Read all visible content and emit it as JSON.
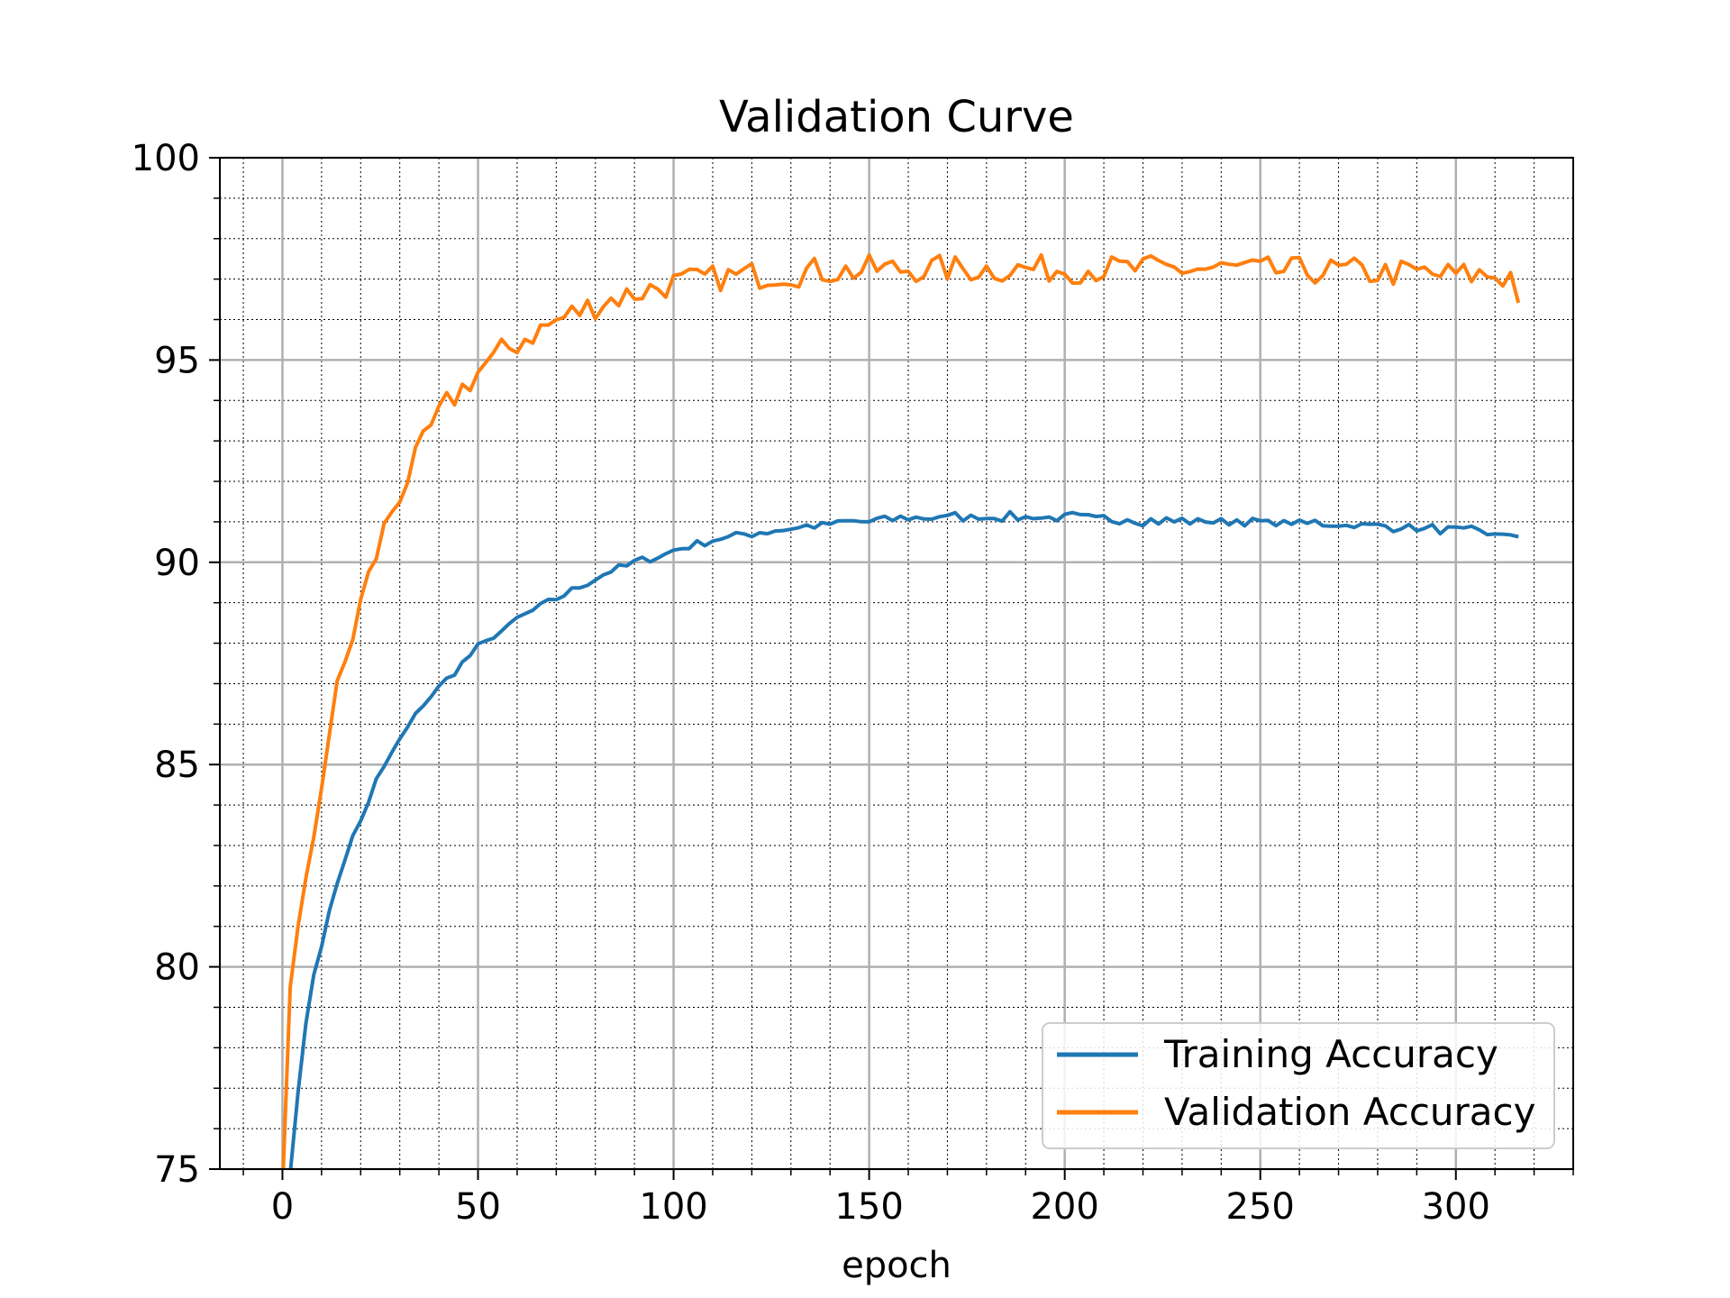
{
  "chart_data": {
    "type": "line",
    "title": "Validation Curve",
    "xlabel": "epoch",
    "ylabel": "",
    "xlim": [
      -16,
      330
    ],
    "ylim": [
      75,
      100
    ],
    "xticks": [
      0,
      50,
      100,
      150,
      200,
      250,
      300
    ],
    "yticks": [
      75,
      80,
      85,
      90,
      95,
      100
    ],
    "grid": true,
    "minor_grid": true,
    "legend_position": "lower-right",
    "series": [
      {
        "name": "Training Accuracy",
        "color": "#1f77b4",
        "x": [
          0,
          2,
          4,
          6,
          8,
          10,
          12,
          14,
          16,
          18,
          20,
          22,
          24,
          26,
          28,
          30,
          32,
          34,
          36,
          38,
          40,
          42,
          44,
          46,
          48,
          50,
          52,
          54,
          56,
          58,
          60,
          62,
          64,
          66,
          68,
          70,
          72,
          74,
          76,
          78,
          80,
          82,
          84,
          86,
          88,
          90,
          92,
          94,
          96,
          98,
          100,
          102,
          104,
          106,
          108,
          110,
          112,
          114,
          116,
          118,
          120,
          122,
          124,
          126,
          128,
          130,
          132,
          134,
          136,
          138,
          140,
          142,
          144,
          146,
          148,
          150,
          152,
          154,
          156,
          158,
          160,
          162,
          164,
          166,
          168,
          170,
          172,
          174,
          176,
          178,
          180,
          182,
          184,
          186,
          188,
          190,
          192,
          194,
          196,
          198,
          200,
          202,
          204,
          206,
          208,
          210,
          212,
          214,
          216,
          218,
          220,
          222,
          224,
          226,
          228,
          230,
          232,
          234,
          236,
          238,
          240,
          242,
          244,
          246,
          248,
          250,
          252,
          254,
          256,
          258,
          260,
          262,
          264,
          266,
          268,
          270,
          272,
          274,
          276,
          278,
          280,
          282,
          284,
          286,
          288,
          290,
          292,
          294,
          296,
          298,
          300,
          302,
          304,
          306,
          308,
          310,
          312,
          314,
          316
        ],
        "values": [
          72.0,
          74.9,
          76.9,
          78.6,
          79.8,
          80.6,
          81.3,
          82.1,
          82.7,
          83.2,
          83.6,
          84.1,
          84.6,
          84.9,
          85.3,
          85.6,
          85.9,
          86.2,
          86.5,
          86.7,
          86.9,
          87.1,
          87.3,
          87.5,
          87.7,
          87.9,
          88.0,
          88.2,
          88.3,
          88.4,
          88.6,
          88.7,
          88.8,
          88.9,
          89.0,
          89.1,
          89.2,
          89.3,
          89.4,
          89.5,
          89.6,
          89.7,
          89.8,
          89.85,
          89.9,
          90.0,
          90.05,
          90.1,
          90.15,
          90.2,
          90.3,
          90.35,
          90.4,
          90.45,
          90.5,
          90.55,
          90.6,
          90.6,
          90.65,
          90.7,
          90.7,
          90.75,
          90.75,
          90.8,
          90.8,
          90.85,
          90.85,
          90.9,
          90.9,
          90.9,
          90.95,
          90.95,
          91.0,
          91.0,
          91.0,
          91.0,
          91.05,
          91.05,
          91.05,
          91.1,
          91.1,
          91.1,
          91.1,
          91.1,
          91.15,
          91.1,
          91.15,
          91.1,
          91.1,
          91.15,
          91.1,
          91.15,
          91.1,
          91.15,
          91.1,
          91.1,
          91.15,
          91.1,
          91.1,
          91.1,
          91.1,
          91.15,
          91.1,
          91.1,
          91.05,
          91.1,
          91.05,
          91.05,
          91.1,
          91.05,
          91.0,
          91.05,
          91.0,
          91.05,
          91.0,
          91.05,
          91.0,
          91.0,
          91.05,
          91.0,
          91.0,
          91.0,
          91.05,
          91.0,
          91.0,
          91.0,
          90.95,
          91.0,
          90.95,
          91.0,
          90.95,
          90.95,
          91.0,
          90.95,
          90.95,
          90.95,
          90.9,
          90.95,
          90.9,
          90.9,
          90.9,
          90.9,
          90.85,
          90.9,
          90.85,
          90.85,
          90.8,
          90.85,
          90.8,
          90.8,
          90.8,
          90.75,
          90.8,
          90.75,
          90.7,
          90.75,
          90.65,
          90.6,
          90.65
        ],
        "noise": 0.1
      },
      {
        "name": "Validation Accuracy",
        "color": "#ff7f0e",
        "x": [
          0,
          2,
          4,
          6,
          8,
          10,
          12,
          14,
          16,
          18,
          20,
          22,
          24,
          26,
          28,
          30,
          32,
          34,
          36,
          38,
          40,
          42,
          44,
          46,
          48,
          50,
          52,
          54,
          56,
          58,
          60,
          62,
          64,
          66,
          68,
          70,
          72,
          74,
          76,
          78,
          80,
          82,
          84,
          86,
          88,
          90,
          92,
          94,
          96,
          98,
          100,
          102,
          104,
          106,
          108,
          110,
          112,
          114,
          116,
          118,
          120,
          122,
          124,
          126,
          128,
          130,
          132,
          134,
          136,
          138,
          140,
          142,
          144,
          146,
          148,
          150,
          152,
          154,
          156,
          158,
          160,
          162,
          164,
          166,
          168,
          170,
          172,
          174,
          176,
          178,
          180,
          182,
          184,
          186,
          188,
          190,
          192,
          194,
          196,
          198,
          200,
          202,
          204,
          206,
          208,
          210,
          212,
          214,
          216,
          218,
          220,
          222,
          224,
          226,
          228,
          230,
          232,
          234,
          236,
          238,
          240,
          242,
          244,
          246,
          248,
          250,
          252,
          254,
          256,
          258,
          260,
          262,
          264,
          266,
          268,
          270,
          272,
          274,
          276,
          278,
          280,
          282,
          284,
          286,
          288,
          290,
          292,
          294,
          296,
          298,
          300,
          302,
          304,
          306,
          308,
          310,
          312,
          314,
          316
        ],
        "values": [
          74.5,
          79.5,
          81.0,
          82.2,
          83.2,
          84.6,
          85.8,
          86.8,
          87.5,
          88.2,
          89.0,
          89.6,
          90.2,
          90.8,
          91.3,
          91.7,
          92.1,
          92.5,
          92.9,
          93.3,
          93.6,
          93.9,
          94.1,
          94.3,
          94.5,
          94.7,
          94.9,
          95.0,
          95.2,
          95.3,
          95.4,
          95.55,
          95.65,
          95.75,
          95.85,
          95.95,
          96.05,
          96.15,
          96.2,
          96.3,
          96.35,
          96.45,
          96.5,
          96.55,
          96.6,
          96.65,
          96.7,
          96.75,
          96.8,
          96.85,
          96.9,
          96.9,
          96.95,
          96.95,
          97.0,
          97.0,
          97.05,
          97.05,
          97.05,
          97.1,
          97.1,
          97.1,
          97.1,
          97.15,
          97.15,
          97.15,
          97.15,
          97.2,
          97.2,
          97.2,
          97.2,
          97.2,
          97.2,
          97.2,
          97.2,
          97.25,
          97.25,
          97.25,
          97.25,
          97.25,
          97.25,
          97.25,
          97.25,
          97.25,
          97.25,
          97.25,
          97.25,
          97.25,
          97.25,
          97.25,
          97.25,
          97.25,
          97.25,
          97.25,
          97.25,
          97.25,
          97.25,
          97.25,
          97.25,
          97.25,
          97.25,
          97.25,
          97.25,
          97.25,
          97.25,
          97.25,
          97.25,
          97.25,
          97.25,
          97.25,
          97.25,
          97.25,
          97.25,
          97.25,
          97.25,
          97.25,
          97.25,
          97.25,
          97.25,
          97.25,
          97.25,
          97.25,
          97.25,
          97.25,
          97.2,
          97.2,
          97.2,
          97.2,
          97.2,
          97.2,
          97.2,
          97.2,
          97.2,
          97.2,
          97.2,
          97.2,
          97.2,
          97.2,
          97.15,
          97.15,
          97.15,
          97.15,
          97.15,
          97.15,
          97.15,
          97.15,
          97.15,
          97.1,
          97.1,
          97.1,
          97.1,
          97.1,
          97.1,
          97.1,
          97.1,
          97.1,
          97.05,
          97.1,
          96.6
        ],
        "noise": 0.35
      }
    ]
  }
}
